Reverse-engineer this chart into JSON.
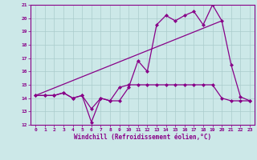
{
  "line1_x": [
    0,
    1,
    2,
    3,
    4,
    5,
    6,
    7,
    8,
    9,
    10,
    11,
    12,
    13,
    14,
    15,
    16,
    17,
    18,
    19,
    20,
    21,
    22,
    23
  ],
  "line1_y": [
    14.2,
    14.2,
    14.2,
    14.4,
    14.0,
    14.2,
    12.2,
    14.0,
    13.8,
    13.8,
    14.8,
    16.8,
    16.0,
    19.5,
    20.2,
    19.8,
    20.2,
    20.5,
    19.5,
    21.0,
    19.8,
    16.5,
    14.1,
    13.8
  ],
  "line2_x": [
    0,
    1,
    2,
    3,
    4,
    5,
    6,
    7,
    8,
    9,
    10,
    11,
    12,
    13,
    14,
    15,
    16,
    17,
    18,
    19,
    20,
    21,
    22,
    23
  ],
  "line2_y": [
    14.2,
    14.2,
    14.2,
    14.4,
    14.0,
    14.2,
    13.2,
    14.0,
    13.8,
    14.8,
    15.0,
    15.0,
    15.0,
    15.0,
    15.0,
    15.0,
    15.0,
    15.0,
    15.0,
    15.0,
    14.0,
    13.8,
    13.8,
    13.8
  ],
  "line3_x": [
    0,
    20
  ],
  "line3_y": [
    14.2,
    19.8
  ],
  "bg_color": "#cce8e8",
  "grid_color": "#aacccc",
  "line_color": "#880088",
  "xlabel": "Windchill (Refroidissement éolien,°C)",
  "xlim": [
    -0.5,
    23.5
  ],
  "ylim": [
    12,
    21
  ],
  "yticks": [
    12,
    13,
    14,
    15,
    16,
    17,
    18,
    19,
    20,
    21
  ],
  "xticks": [
    0,
    1,
    2,
    3,
    4,
    5,
    6,
    7,
    8,
    9,
    10,
    11,
    12,
    13,
    14,
    15,
    16,
    17,
    18,
    19,
    20,
    21,
    22,
    23
  ]
}
